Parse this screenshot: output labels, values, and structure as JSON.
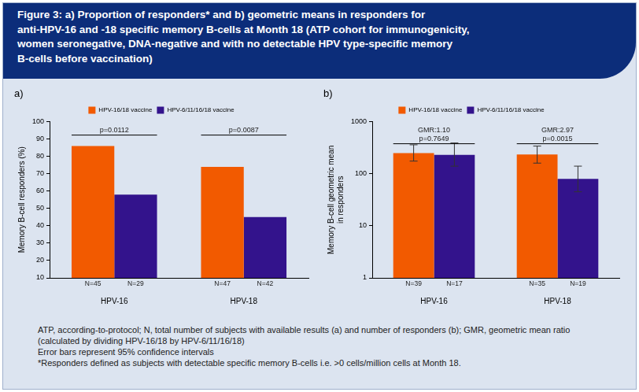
{
  "title_lines": [
    "Figure 3: a) Proportion of responders* and b) geometric means in responders for",
    "anti-HPV-16 and -18 specific memory B-cells at Month 18 (ATP cohort for immunogenicity,",
    "women seronegative, DNA-negative and with no detectable HPV type-specific memory",
    "B-cells before vaccination)"
  ],
  "chart_data": [
    {
      "type": "bar",
      "title": "a)",
      "categories": [
        "HPV-16",
        "HPV-18"
      ],
      "series": [
        {
          "name": "HPV-16/18 vaccine",
          "color": "#f25a00",
          "values": [
            86,
            74
          ],
          "n_labels": [
            "N=45",
            "N=47"
          ]
        },
        {
          "name": "HPV-6/11/16/18 vaccine",
          "color": "#33138c",
          "values": [
            58,
            45
          ],
          "n_labels": [
            "N=29",
            "N=42"
          ]
        }
      ],
      "y_label": [
        "Memory B-cell responders (%)"
      ],
      "ylim": [
        10,
        100
      ],
      "yticks": [
        10,
        20,
        30,
        40,
        50,
        60,
        70,
        80,
        90,
        100
      ],
      "grid": false,
      "legend": "top",
      "annotations": [
        {
          "category": "HPV-16",
          "lines": [
            "p=0.0112"
          ]
        },
        {
          "category": "HPV-18",
          "lines": [
            "p=0.0087"
          ]
        }
      ]
    },
    {
      "type": "bar",
      "title": "b)",
      "log": "y",
      "categories": [
        "HPV-16",
        "HPV-18"
      ],
      "series": [
        {
          "name": "HPV-16/18 vaccine",
          "color": "#f25a00",
          "values": [
            250,
            235
          ],
          "error_low": [
            175,
            160
          ],
          "error_high": [
            360,
            340
          ],
          "n_labels": [
            "N=39",
            "N=35"
          ]
        },
        {
          "name": "HPV-6/11/16/18 vaccine",
          "color": "#33138c",
          "values": [
            230,
            80
          ],
          "error_low": [
            140,
            45
          ],
          "error_high": [
            390,
            140
          ],
          "n_labels": [
            "N=17",
            "N=19"
          ]
        }
      ],
      "y_label": [
        "Memory B-cell geometric mean",
        "in responders"
      ],
      "ylim": [
        1,
        1000
      ],
      "yticks": [
        1,
        10,
        100,
        1000
      ],
      "grid": false,
      "legend": "top",
      "annotations": [
        {
          "category": "HPV-16",
          "lines": [
            "GMR:1.10",
            "p=0.7649"
          ]
        },
        {
          "category": "HPV-18",
          "lines": [
            "GMR:2.97",
            "p=0.0015"
          ]
        }
      ]
    }
  ],
  "notes": [
    "ATP, according-to-protocol; N, total number of subjects with available results (a) and number of responders (b); GMR, geometric mean ratio",
    "(calculated by dividing HPV-16/18 by HPV-6/11/16/18)",
    "Error bars represent 95% confidence intervals",
    "*Responders defined as subjects with detectable specific memory B-cells i.e. >0 cells/million cells at Month 18."
  ]
}
